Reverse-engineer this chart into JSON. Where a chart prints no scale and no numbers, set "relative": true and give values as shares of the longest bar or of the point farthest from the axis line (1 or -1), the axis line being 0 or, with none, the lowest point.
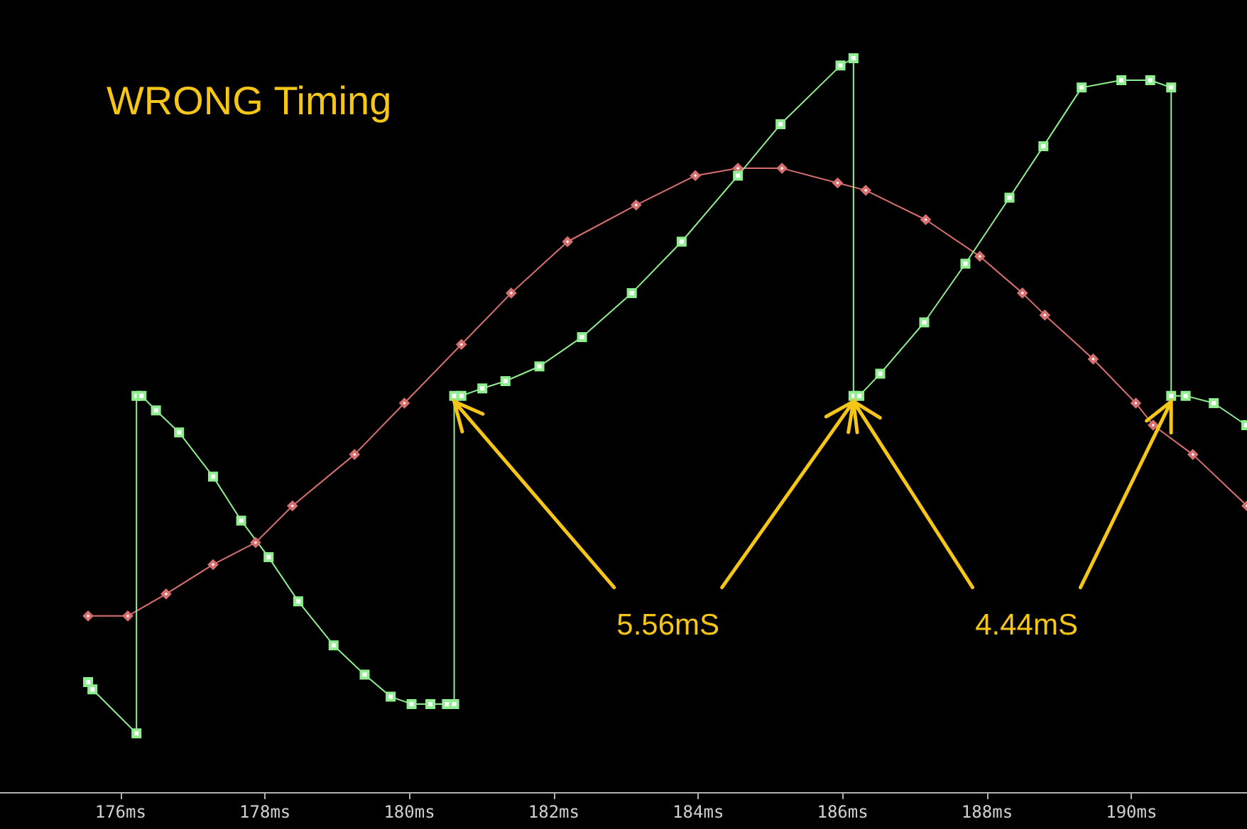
{
  "chart_data": {
    "type": "line",
    "title": "WRONG Timing",
    "relative": true,
    "xlim": [
      174.33,
      191.6
    ],
    "xticks": [
      {
        "value": 176,
        "label": "176ms"
      },
      {
        "value": 178,
        "label": "178ms"
      },
      {
        "value": 180,
        "label": "180ms"
      },
      {
        "value": 182,
        "label": "182ms"
      },
      {
        "value": 184,
        "label": "184ms"
      },
      {
        "value": 186,
        "label": "186ms"
      },
      {
        "value": 188,
        "label": "188ms"
      },
      {
        "value": 190,
        "label": "190ms"
      }
    ],
    "tick_labels": "x",
    "grid": false,
    "line_style": "solid",
    "annotations": [
      "5.56mS",
      "4.44mS"
    ],
    "series": [
      {
        "color": "#d87070",
        "marker": "diamond",
        "x": [
          175.55,
          176.1,
          176.63,
          177.28,
          177.87,
          178.38,
          179.24,
          179.93,
          180.72,
          181.41,
          182.19,
          183.14,
          183.96,
          184.55,
          185.16,
          185.93,
          186.32,
          187.15,
          187.9,
          188.49,
          188.8,
          189.47,
          190.06,
          190.3,
          190.85,
          191.6
        ],
        "values": [
          0.24,
          0.24,
          0.27,
          0.31,
          0.34,
          0.39,
          0.46,
          0.53,
          0.61,
          0.68,
          0.75,
          0.8,
          0.84,
          0.85,
          0.85,
          0.83,
          0.82,
          0.78,
          0.73,
          0.68,
          0.65,
          0.59,
          0.53,
          0.5,
          0.46,
          0.39
        ]
      },
      {
        "color": "#90ee90",
        "marker": "square",
        "x": [
          175.55,
          175.61,
          176.22,
          176.22,
          176.29,
          176.49,
          176.81,
          177.28,
          177.67,
          178.05,
          178.46,
          178.95,
          179.38,
          179.74,
          180.03,
          180.29,
          180.52,
          180.62,
          180.62,
          180.72,
          181.01,
          181.33,
          181.8,
          182.39,
          183.08,
          183.77,
          184.55,
          185.14,
          185.97,
          186.15,
          186.15,
          186.23,
          186.52,
          187.13,
          187.7,
          188.31,
          188.78,
          189.31,
          189.86,
          190.26,
          190.55,
          190.55,
          190.75,
          191.14,
          191.59
        ],
        "values": [
          0.15,
          0.14,
          0.08,
          0.54,
          0.54,
          0.52,
          0.49,
          0.43,
          0.37,
          0.32,
          0.26,
          0.2,
          0.16,
          0.13,
          0.12,
          0.12,
          0.12,
          0.12,
          0.54,
          0.54,
          0.55,
          0.56,
          0.58,
          0.62,
          0.68,
          0.75,
          0.84,
          0.91,
          0.99,
          1,
          0.54,
          0.54,
          0.57,
          0.64,
          0.72,
          0.81,
          0.88,
          0.96,
          0.97,
          0.97,
          0.96,
          0.54,
          0.54,
          0.53,
          0.5
        ]
      }
    ]
  }
}
